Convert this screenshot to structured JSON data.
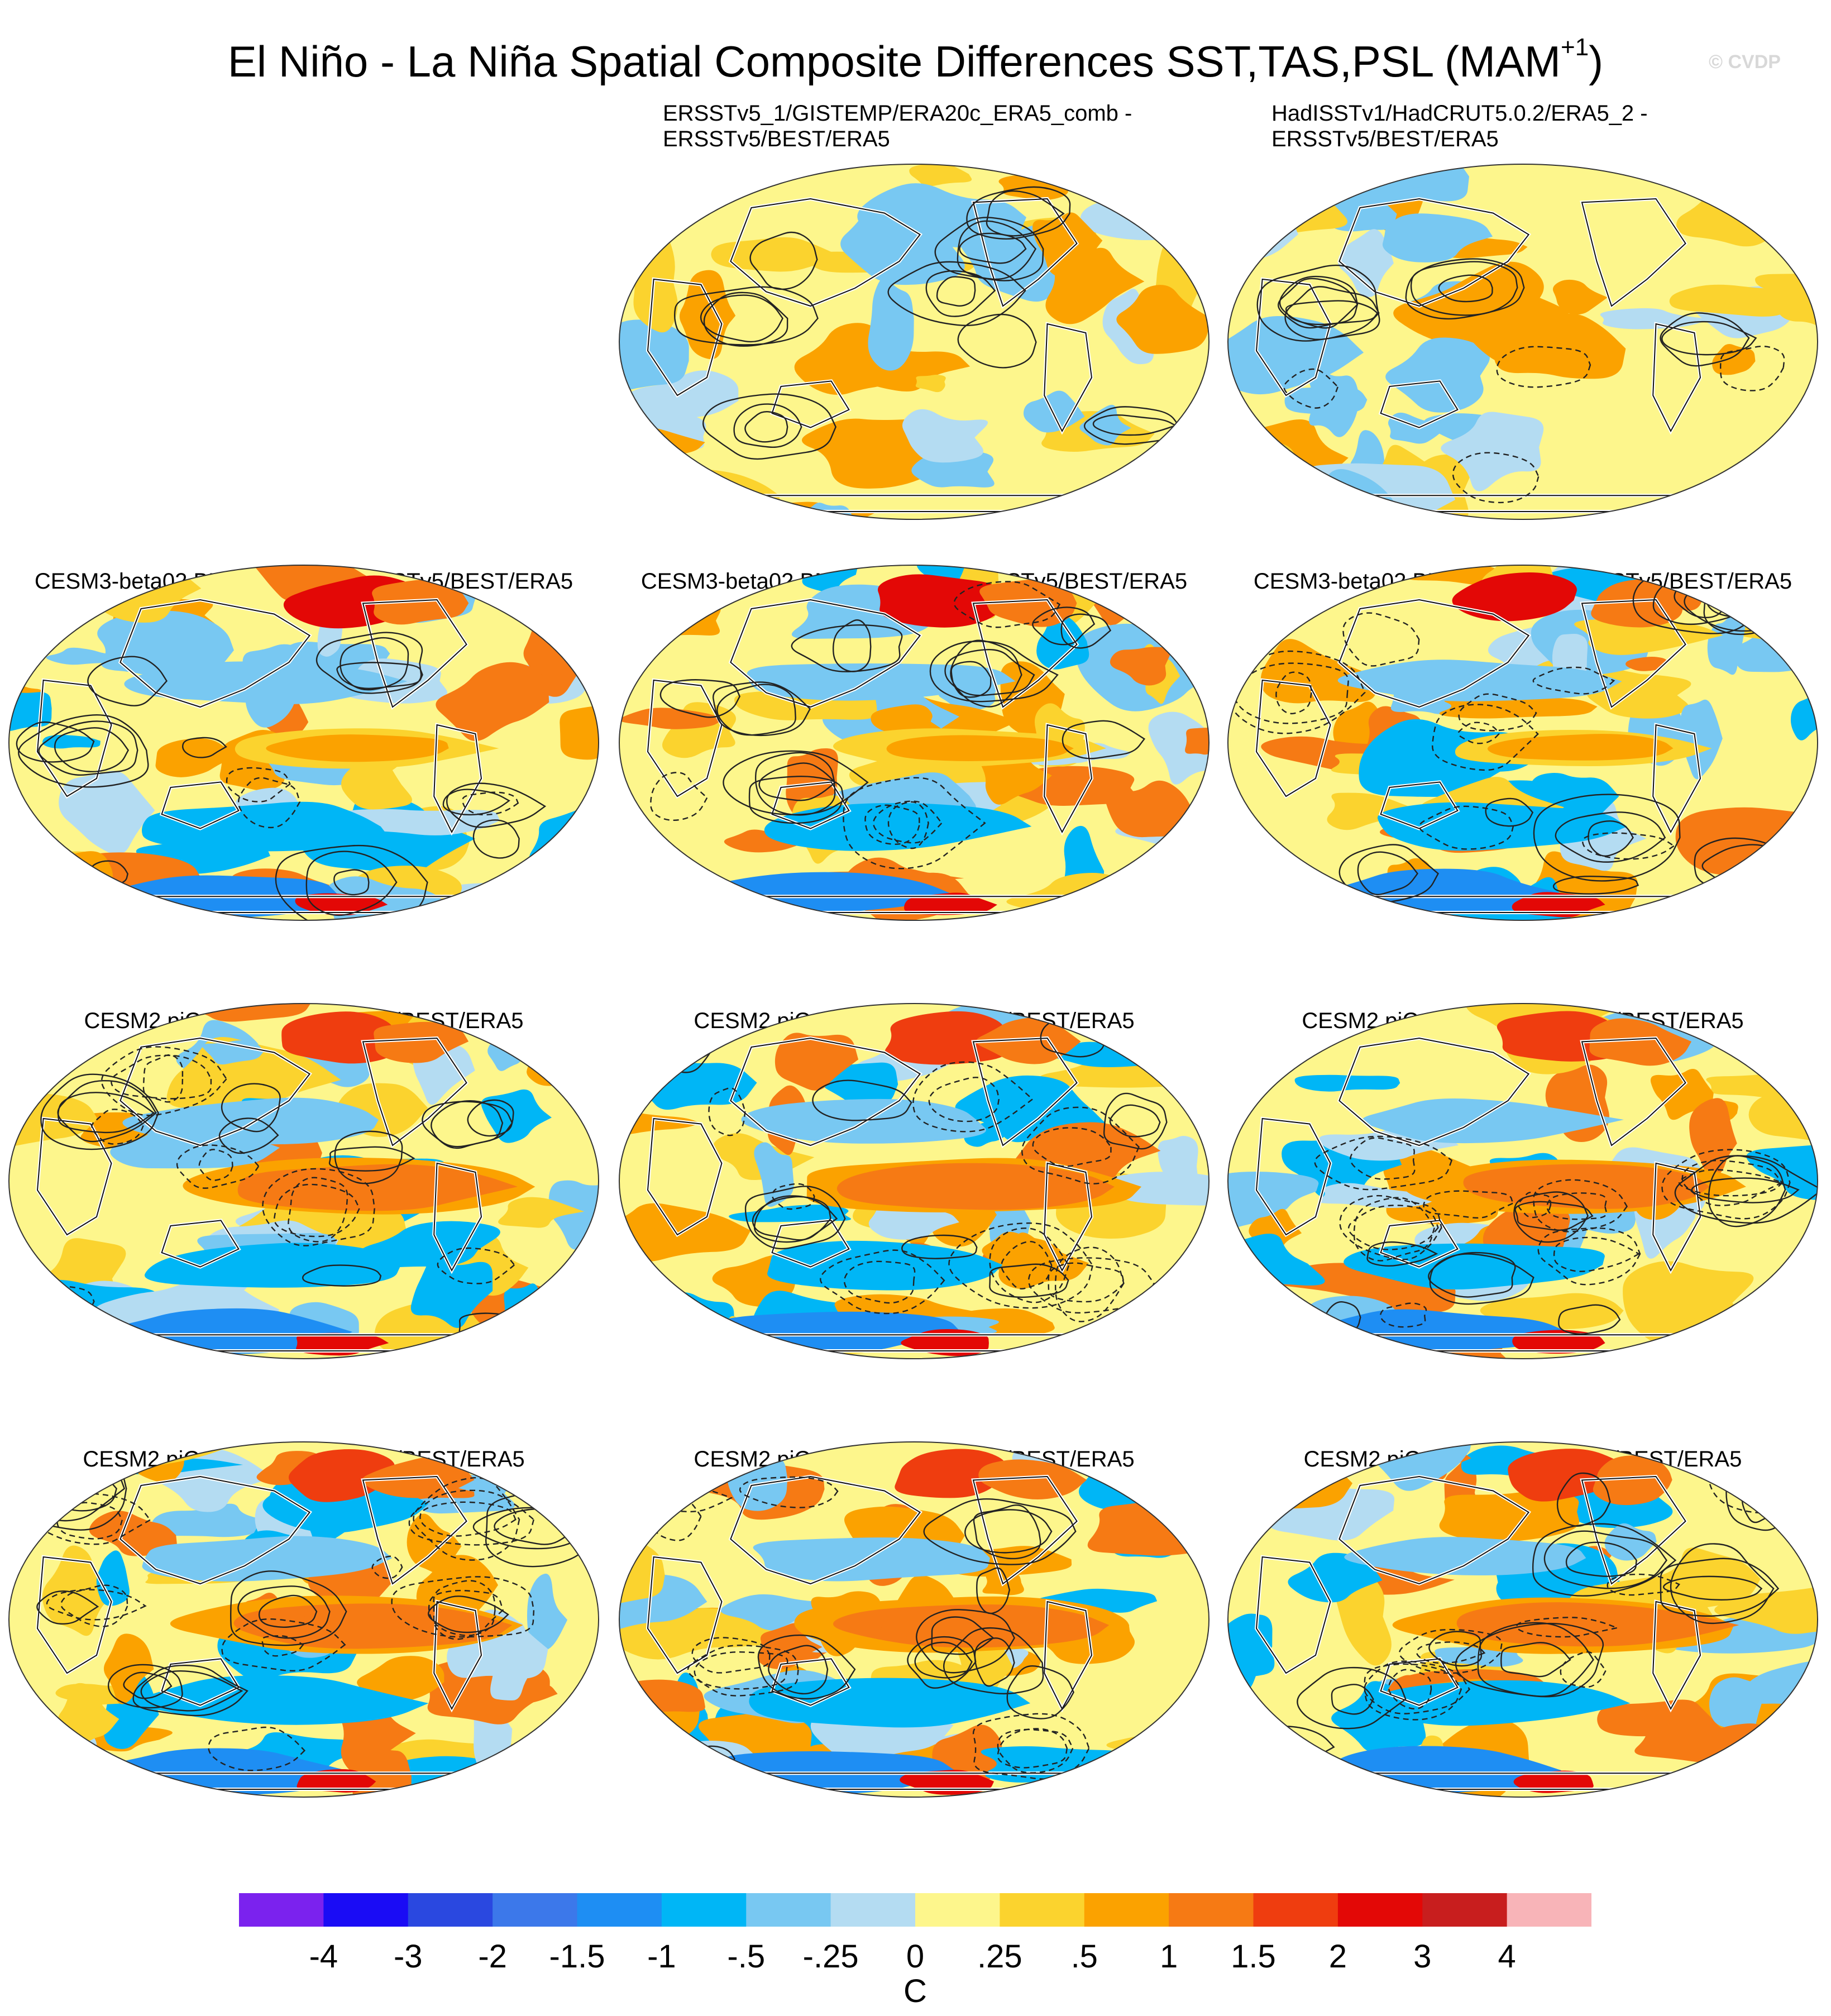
{
  "title": {
    "main": "El Niño - La Niña Spatial Composite Differences SST,TAS,PSL (MAM",
    "superscript": "+1",
    "close": ")"
  },
  "copyright": "© CVDP",
  "panels": [
    {
      "lines": [
        "ERSSTv5_1/GISTEMP/ERA20c_ERA5_comb -",
        "ERSSTv5/BEST/ERA5"
      ],
      "style": "obs"
    },
    {
      "lines": [
        "HadISSTv1/HadCRUT5.0.2/ERA5_2 -",
        "ERSSTv5/BEST/ERA5"
      ],
      "style": "obs"
    },
    {
      "lines": [
        "CESM3-beta02 BLT1850 104 - ERSSTv5/BEST/ERA5"
      ],
      "style": "modelA"
    },
    {
      "lines": [
        "CESM3-beta02 BMT1850 104 - ERSSTv5/BEST/ERA5"
      ],
      "style": "modelA"
    },
    {
      "lines": [
        "CESM3-beta02 BLT1850 109 - ERSSTv5/BEST/ERA5"
      ],
      "style": "modelA"
    },
    {
      "lines": [
        "CESM2 piControl F - ERSSTv5/BEST/ERA5"
      ],
      "style": "modelB"
    },
    {
      "lines": [
        "CESM2 piControl E - ERSSTv5/BEST/ERA5"
      ],
      "style": "modelB"
    },
    {
      "lines": [
        "CESM2 piControl D - ERSSTv5/BEST/ERA5"
      ],
      "style": "modelB"
    },
    {
      "lines": [
        "CESM2 piControl C - ERSSTv5/BEST/ERA5"
      ],
      "style": "modelB"
    },
    {
      "lines": [
        "CESM2 piControl B - ERSSTv5/BEST/ERA5"
      ],
      "style": "modelB"
    },
    {
      "lines": [
        "CESM2 piControl A - ERSSTv5/BEST/ERA5"
      ],
      "style": "modelB"
    }
  ],
  "colorbar": {
    "colors": [
      "#7b22ee",
      "#1a0cf5",
      "#2a48e0",
      "#3c78ea",
      "#1e8ef3",
      "#00b6f6",
      "#78c8f2",
      "#b4dcf2",
      "#fdf68c",
      "#fbd32e",
      "#fba200",
      "#f67a14",
      "#ef3d0f",
      "#e30806",
      "#c81e1e",
      "#f8b4b8"
    ],
    "labels": [
      "-4",
      "-3",
      "-2",
      "-1.5",
      "-1",
      "-.5",
      "-.25",
      "0",
      ".25",
      ".5",
      "1",
      "1.5",
      "2",
      "3",
      "4"
    ],
    "units": "C"
  }
}
